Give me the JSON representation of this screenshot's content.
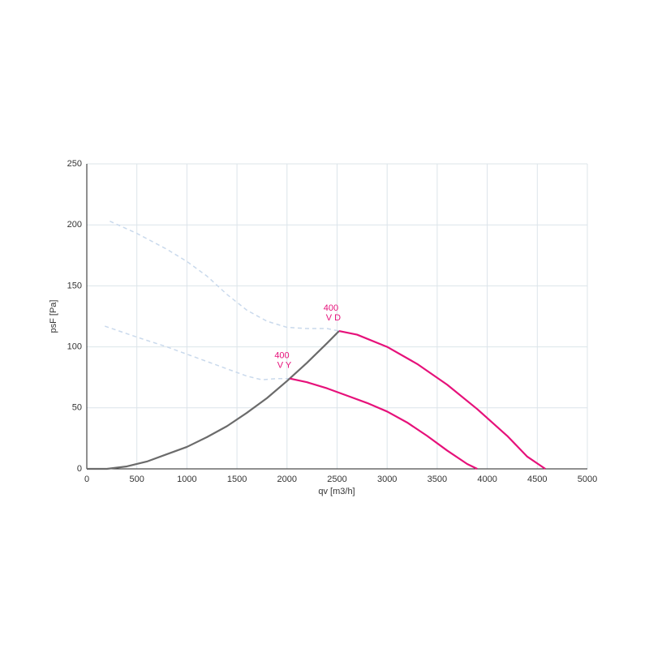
{
  "chart_data": {
    "type": "line",
    "xlabel": "qv [m3/h]",
    "ylabel": "psF [Pa]",
    "xlim": [
      0,
      5000
    ],
    "xticks": [
      0,
      500,
      1000,
      1500,
      2000,
      2500,
      3000,
      3500,
      4000,
      4500,
      5000
    ],
    "ylim": [
      0,
      250
    ],
    "yticks": [
      0,
      50,
      100,
      150,
      200,
      250
    ],
    "grid": true,
    "series": [
      {
        "color": "#c9d9ec",
        "dashed": true,
        "x": [
          230,
          500,
          800,
          1000,
          1200,
          1400,
          1600,
          1800,
          2000,
          2200,
          2400,
          2520
        ],
        "values": [
          203,
          193,
          180,
          170,
          158,
          143,
          130,
          121,
          116,
          115,
          115,
          113
        ]
      },
      {
        "color": "#c9d9ec",
        "dashed": true,
        "x": [
          180,
          500,
          800,
          1000,
          1200,
          1400,
          1600,
          1750,
          1900,
          2030
        ],
        "values": [
          117,
          108,
          100,
          94,
          88,
          82,
          76,
          73,
          74,
          74
        ]
      },
      {
        "color": "#6b6b6b",
        "dashed": false,
        "x": [
          0,
          200,
          400,
          600,
          800,
          1000,
          1200,
          1400,
          1600,
          1800,
          2000,
          2200,
          2400,
          2520
        ],
        "values": [
          0,
          0,
          2,
          6,
          12,
          18,
          26,
          35,
          46,
          58,
          72,
          87,
          103,
          113
        ]
      },
      {
        "color": "#e6117a",
        "dashed": false,
        "label_lines": [
          "400",
          "V D"
        ],
        "x": [
          2520,
          2700,
          3000,
          3300,
          3600,
          3900,
          4200,
          4400,
          4580
        ],
        "values": [
          113,
          110,
          100,
          86,
          69,
          49,
          27,
          10,
          0
        ]
      },
      {
        "color": "#e6117a",
        "dashed": false,
        "label_lines": [
          "400",
          "V Y"
        ],
        "x": [
          2030,
          2200,
          2400,
          2600,
          2800,
          3000,
          3200,
          3400,
          3600,
          3800,
          3900
        ],
        "values": [
          74,
          71,
          66,
          60,
          54,
          47,
          38,
          27,
          15,
          4,
          0
        ]
      }
    ]
  }
}
